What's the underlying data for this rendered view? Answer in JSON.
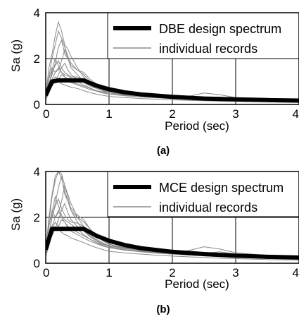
{
  "colors": {
    "background": "#ffffff",
    "frame": "#000000",
    "design_spectrum": "#000000",
    "individual_records": "#8a8a8a"
  },
  "chart_data": [
    {
      "type": "line",
      "panel_label": "(a)",
      "xlabel": "Period (sec)",
      "ylabel": "Sa (g)",
      "xlim": [
        0,
        4
      ],
      "ylim": [
        0,
        4
      ],
      "x_ticks": [
        0,
        1,
        2,
        3,
        4
      ],
      "y_ticks": [
        0,
        2,
        4
      ],
      "grid": true,
      "legend_position": "top-right",
      "series": [
        {
          "name": "DBE design spectrum",
          "role": "design",
          "x": [
            0,
            0.1,
            0.2,
            0.3,
            0.4,
            0.6,
            0.8,
            1.0,
            1.25,
            1.5,
            2.0,
            2.5,
            3.0,
            3.5,
            4.0
          ],
          "y": [
            0.4,
            1.0,
            1.05,
            1.05,
            1.05,
            1.05,
            0.82,
            0.66,
            0.53,
            0.44,
            0.33,
            0.26,
            0.22,
            0.19,
            0.17
          ]
        },
        {
          "name": "individual records",
          "role": "records",
          "x": [
            0,
            0.05,
            0.1,
            0.15,
            0.2,
            0.25,
            0.3,
            0.35,
            0.4,
            0.5,
            0.6,
            0.7,
            0.8,
            0.9,
            1.0,
            1.25,
            1.5,
            1.75,
            2.0,
            2.25,
            2.5,
            2.75,
            3.0,
            3.5,
            4.0
          ],
          "records": [
            [
              0.3,
              1.6,
              2.2,
              3.0,
              3.6,
              3.2,
              2.6,
              2.4,
              2.1,
              1.6,
              1.2,
              0.9,
              0.75,
              0.6,
              0.5,
              0.42,
              0.35,
              0.3,
              0.27,
              0.23,
              0.2,
              0.18,
              0.16,
              0.13,
              0.11
            ],
            [
              0.4,
              0.9,
              1.3,
              1.8,
              2.5,
              2.8,
              2.2,
              2.0,
              1.7,
              1.5,
              1.4,
              1.1,
              0.9,
              0.7,
              0.6,
              0.45,
              0.38,
              0.32,
              0.3,
              0.26,
              0.24,
              0.22,
              0.2,
              0.17,
              0.15
            ],
            [
              0.3,
              1.1,
              1.6,
              1.4,
              1.5,
              1.9,
              2.4,
              2.0,
              1.6,
              1.3,
              1.0,
              0.85,
              0.7,
              0.62,
              0.55,
              0.5,
              0.42,
              0.36,
              0.31,
              0.27,
              0.25,
              0.22,
              0.2,
              0.16,
              0.14
            ],
            [
              0.35,
              0.8,
              1.0,
              1.2,
              1.1,
              1.3,
              1.2,
              1.1,
              1.0,
              0.9,
              0.8,
              0.7,
              0.6,
              0.55,
              0.5,
              0.44,
              0.4,
              0.36,
              0.34,
              0.32,
              0.3,
              0.28,
              0.25,
              0.2,
              0.17
            ],
            [
              0.25,
              0.7,
              1.5,
              2.0,
              1.7,
              1.4,
              1.3,
              1.25,
              1.15,
              1.0,
              0.85,
              0.72,
              0.6,
              0.52,
              0.45,
              0.4,
              0.35,
              0.3,
              0.26,
              0.23,
              0.21,
              0.19,
              0.17,
              0.14,
              0.12
            ],
            [
              0.3,
              0.6,
              0.8,
              1.0,
              1.3,
              1.6,
              1.8,
              1.5,
              1.3,
              1.1,
              0.95,
              0.8,
              0.7,
              0.6,
              0.5,
              0.42,
              0.37,
              0.32,
              0.28,
              0.35,
              0.5,
              0.42,
              0.3,
              0.22,
              0.18
            ],
            [
              0.2,
              0.5,
              0.9,
              1.1,
              1.0,
              0.9,
              0.85,
              0.8,
              0.75,
              0.7,
              0.6,
              0.52,
              0.45,
              0.4,
              0.35,
              0.3,
              0.26,
              0.23,
              0.2,
              0.18,
              0.16,
              0.14,
              0.13,
              0.11,
              0.09
            ],
            [
              0.4,
              1.2,
              2.0,
              2.6,
              3.2,
              2.9,
              2.5,
              2.1,
              1.8,
              1.5,
              1.3,
              1.0,
              0.8,
              0.65,
              0.55,
              0.45,
              0.38,
              0.33,
              0.29,
              0.26,
              0.23,
              0.2,
              0.18,
              0.15,
              0.13
            ],
            [
              0.35,
              0.9,
              1.4,
              1.7,
              1.9,
              1.6,
              1.4,
              1.3,
              1.2,
              1.2,
              1.1,
              0.95,
              0.8,
              0.7,
              0.62,
              0.5,
              0.44,
              0.4,
              0.37,
              0.33,
              0.3,
              0.27,
              0.24,
              0.2,
              0.17
            ],
            [
              0.3,
              0.75,
              1.1,
              1.4,
              1.6,
              1.4,
              1.2,
              1.05,
              0.95,
              0.85,
              0.75,
              0.65,
              0.58,
              0.5,
              0.45,
              0.38,
              0.33,
              0.29,
              0.26,
              0.24,
              0.28,
              0.32,
              0.26,
              0.2,
              0.16
            ]
          ]
        }
      ]
    },
    {
      "type": "line",
      "panel_label": "(b)",
      "xlabel": "Period (sec)",
      "ylabel": "Sa (g)",
      "xlim": [
        0,
        4
      ],
      "ylim": [
        0,
        4
      ],
      "x_ticks": [
        0,
        1,
        2,
        3,
        4
      ],
      "y_ticks": [
        0,
        2,
        4
      ],
      "grid": true,
      "legend_position": "top-right",
      "series": [
        {
          "name": "MCE design spectrum",
          "role": "design",
          "x": [
            0,
            0.1,
            0.2,
            0.3,
            0.4,
            0.6,
            0.8,
            1.0,
            1.25,
            1.5,
            2.0,
            2.5,
            3.0,
            3.5,
            4.0
          ],
          "y": [
            0.6,
            1.5,
            1.5,
            1.5,
            1.5,
            1.5,
            1.2,
            0.98,
            0.79,
            0.66,
            0.5,
            0.4,
            0.33,
            0.28,
            0.25
          ]
        },
        {
          "name": "individual records",
          "role": "records",
          "x": [
            0,
            0.05,
            0.1,
            0.15,
            0.2,
            0.25,
            0.3,
            0.35,
            0.4,
            0.5,
            0.6,
            0.7,
            0.8,
            0.9,
            1.0,
            1.25,
            1.5,
            1.75,
            2.0,
            2.25,
            2.5,
            2.75,
            3.0,
            3.5,
            4.0
          ],
          "records": [
            [
              0.5,
              2.0,
              3.0,
              3.8,
              4.0,
              3.9,
              3.4,
              3.0,
              2.6,
              2.0,
              1.6,
              1.2,
              1.0,
              0.85,
              0.72,
              0.6,
              0.5,
              0.44,
              0.4,
              0.36,
              0.32,
              0.29,
              0.26,
              0.22,
              0.19
            ],
            [
              0.6,
              1.3,
              2.0,
              2.6,
              3.3,
              3.8,
              3.0,
              2.7,
              2.3,
              2.0,
              1.8,
              1.5,
              1.2,
              1.0,
              0.85,
              0.65,
              0.55,
              0.48,
              0.44,
              0.4,
              0.37,
              0.34,
              0.31,
              0.26,
              0.22
            ],
            [
              0.45,
              1.6,
              2.3,
              2.0,
              2.2,
              2.7,
              3.4,
              2.9,
              2.3,
              1.8,
              1.4,
              1.15,
              0.95,
              0.85,
              0.76,
              0.68,
              0.58,
              0.5,
              0.45,
              0.4,
              0.37,
              0.34,
              0.3,
              0.25,
              0.21
            ],
            [
              0.5,
              1.1,
              1.5,
              1.8,
              1.6,
              1.9,
              1.8,
              1.6,
              1.5,
              1.35,
              1.2,
              1.05,
              0.9,
              0.82,
              0.75,
              0.66,
              0.6,
              0.55,
              0.52,
              0.49,
              0.46,
              0.43,
              0.4,
              0.33,
              0.28
            ],
            [
              0.4,
              1.0,
              2.2,
              2.9,
              2.5,
              2.1,
              1.9,
              1.8,
              1.7,
              1.5,
              1.25,
              1.05,
              0.9,
              0.78,
              0.68,
              0.6,
              0.52,
              0.46,
              0.4,
              0.36,
              0.32,
              0.29,
              0.26,
              0.21,
              0.18
            ],
            [
              0.45,
              0.9,
              1.2,
              1.5,
              1.9,
              2.3,
              2.6,
              2.2,
              1.9,
              1.6,
              1.4,
              1.2,
              1.05,
              0.9,
              0.76,
              0.64,
              0.56,
              0.5,
              0.46,
              0.55,
              0.72,
              0.62,
              0.46,
              0.34,
              0.28
            ],
            [
              0.3,
              0.75,
              1.3,
              1.6,
              1.5,
              1.35,
              1.25,
              1.2,
              1.1,
              1.0,
              0.9,
              0.78,
              0.68,
              0.6,
              0.52,
              0.45,
              0.4,
              0.35,
              0.31,
              0.28,
              0.25,
              0.22,
              0.2,
              0.16,
              0.14
            ],
            [
              0.6,
              1.8,
              2.9,
              3.6,
              4.0,
              3.7,
              3.2,
              2.7,
              2.4,
              2.1,
              1.9,
              1.5,
              1.2,
              0.98,
              0.82,
              0.68,
              0.57,
              0.5,
              0.44,
              0.39,
              0.35,
              0.31,
              0.28,
              0.23,
              0.2
            ],
            [
              0.5,
              1.3,
              2.0,
              2.5,
              2.8,
              2.4,
              2.1,
              1.9,
              1.8,
              1.75,
              1.6,
              1.4,
              1.2,
              1.05,
              0.92,
              0.75,
              0.66,
              0.6,
              0.55,
              0.5,
              0.45,
              0.41,
              0.36,
              0.3,
              0.26
            ],
            [
              0.45,
              1.1,
              1.6,
              2.0,
              2.3,
              2.0,
              1.8,
              1.55,
              1.4,
              1.25,
              1.1,
              0.96,
              0.86,
              0.75,
              0.68,
              0.57,
              0.5,
              0.44,
              0.4,
              0.38,
              0.44,
              0.5,
              0.4,
              0.3,
              0.24
            ]
          ]
        }
      ]
    }
  ]
}
